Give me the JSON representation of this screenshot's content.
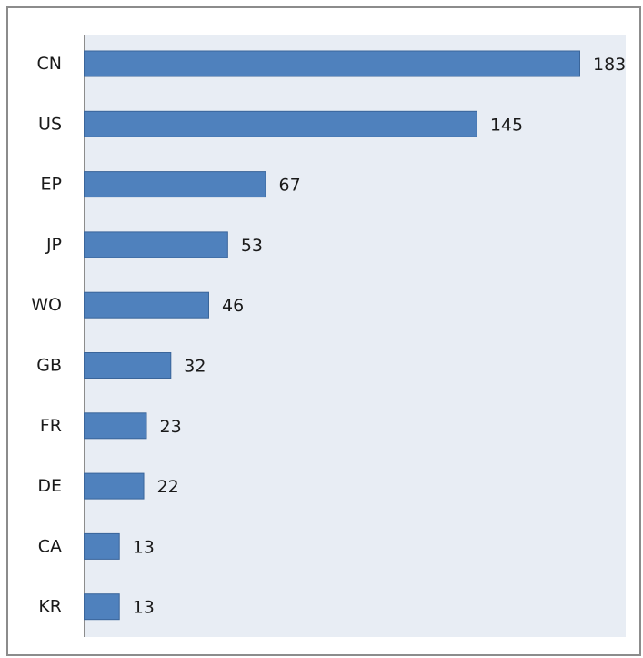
{
  "chart_data": {
    "type": "bar",
    "orientation": "horizontal",
    "categories": [
      "CN",
      "US",
      "EP",
      "JP",
      "WO",
      "GB",
      "FR",
      "DE",
      "CA",
      "KR"
    ],
    "values": [
      183,
      145,
      67,
      53,
      46,
      32,
      23,
      22,
      13,
      13
    ],
    "title": "",
    "xlabel": "",
    "ylabel": "",
    "xlim": [
      0,
      193
    ],
    "grid": false,
    "legend": "none",
    "data_labels": true,
    "colors": {
      "bar_fill": "#4f81bd",
      "bar_stroke": "#3a659a",
      "plot_background": "#e8edf4",
      "axis": "#8c8c8c",
      "frame_border": "#8c8c8c"
    }
  }
}
